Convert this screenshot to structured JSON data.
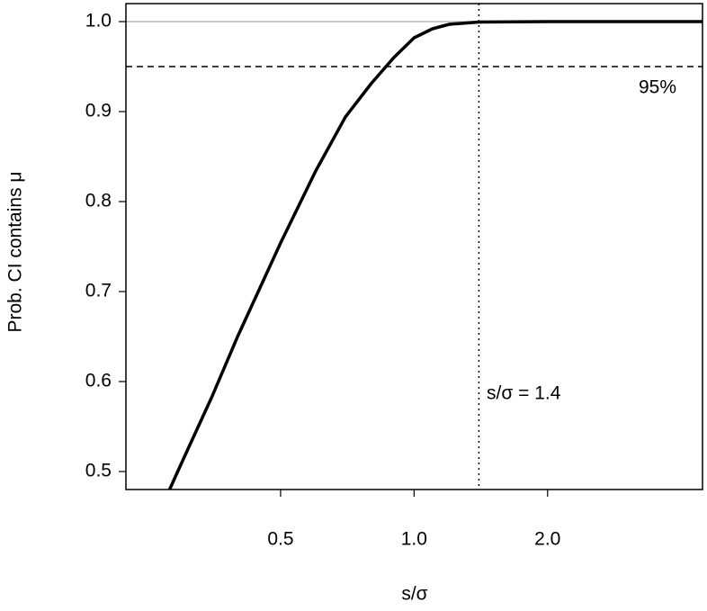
{
  "chart_data": {
    "type": "line",
    "xlabel": "s/σ",
    "ylabel": "Prob. CI contains μ",
    "xscale": "log",
    "x": [
      0.281,
      0.3,
      0.35,
      0.4,
      0.5,
      0.6,
      0.7,
      0.8,
      0.9,
      1.0,
      1.1,
      1.2,
      1.4,
      2.0,
      3.0,
      4.47
    ],
    "series": [
      {
        "color": "#000000",
        "values": [
          0.48,
          0.511,
          0.583,
          0.65,
          0.754,
          0.834,
          0.894,
          0.931,
          0.96,
          0.982,
          0.992,
          0.997,
          0.9995,
          1.0,
          1.0,
          1.0
        ]
      }
    ],
    "xlim": [
      0.224,
      4.47
    ],
    "ylim": [
      0.48,
      1.02
    ],
    "xticks": [
      0.5,
      {
        "value": 1,
        "label": "1.0"
      },
      {
        "value": 2,
        "label": "2.0"
      }
    ],
    "yticks": [
      0.5,
      0.6,
      0.7,
      0.8,
      0.9,
      {
        "value": 1,
        "label": "1.0"
      }
    ],
    "hlines": [
      {
        "value": 1,
        "style": "solid",
        "color": "#bbbbbb"
      },
      {
        "value": 0.95,
        "style": "dashed",
        "color": "#000000"
      }
    ],
    "vlines": [
      {
        "value": 1.4,
        "style": "dotted",
        "color": "#000000"
      }
    ],
    "annotations": [
      "95%",
      "s/σ = 1.4"
    ]
  }
}
